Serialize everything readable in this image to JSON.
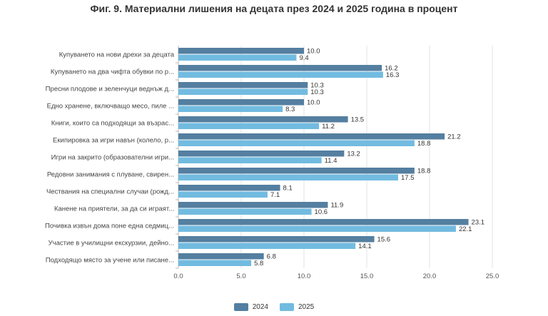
{
  "title": "Фиг. 9. Материални лишения на децата през 2024 и 2025 година в процент",
  "chart_data": {
    "type": "bar",
    "orientation": "horizontal",
    "categories": [
      "Купуването на нови дрехи за децата",
      "Купуването на два чифта обувки по р...",
      "Пресни плодове и зеленчуци веднъж д...",
      "Едно хранене, включващо месо, пиле ...",
      "Книги, които са подходящи за възрас...",
      "Екипировка за игри навън (колело, р...",
      "Игри на закрито (образователни игри...",
      "Редовни занимания с плуване, свирен...",
      "Чествания на специални случаи (рожд...",
      "Канене на приятели, за да си играят...",
      "Почивка извън дома поне една седмиц...",
      "Участие в училищни екскурзии, дейно...",
      "Подходящо място за учене или писане..."
    ],
    "series": [
      {
        "name": "2024",
        "color": "#547fa0",
        "values": [
          10.0,
          16.2,
          10.3,
          10.0,
          13.5,
          21.2,
          13.2,
          18.8,
          8.1,
          11.9,
          23.1,
          15.6,
          6.8
        ]
      },
      {
        "name": "2025",
        "color": "#72bbe0",
        "values": [
          9.4,
          16.3,
          10.3,
          8.3,
          11.2,
          18.8,
          11.4,
          17.5,
          7.1,
          10.6,
          22.1,
          14.1,
          5.8
        ]
      }
    ],
    "xlim": [
      0,
      25
    ],
    "xticks": [
      "0.0",
      "5.0",
      "10.0",
      "15.0",
      "20.0",
      "25.0"
    ],
    "grid": true,
    "legend_position": "bottom-center"
  }
}
